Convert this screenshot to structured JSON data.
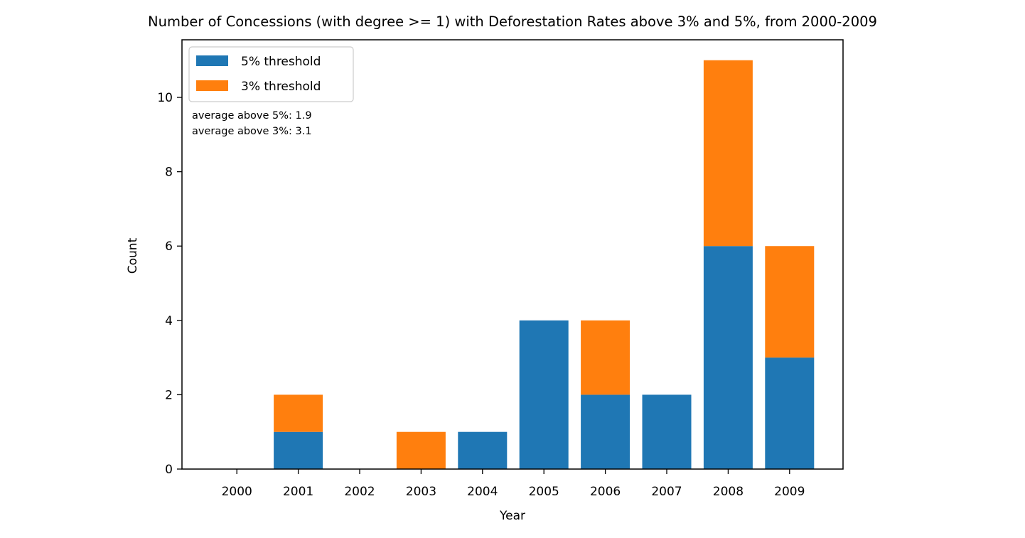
{
  "chart_data": {
    "type": "bar",
    "stacked": true,
    "title": "Number of Concessions (with degree >= 1) with Deforestation Rates above 3% and 5%, from 2000-2009",
    "xlabel": "Year",
    "ylabel": "Count",
    "ylim": [
      0,
      11.55
    ],
    "yticks": [
      0,
      2,
      4,
      6,
      8,
      10
    ],
    "categories": [
      "2000",
      "2001",
      "2002",
      "2003",
      "2004",
      "2005",
      "2006",
      "2007",
      "2008",
      "2009"
    ],
    "series": [
      {
        "name": "5% threshold",
        "color": "#1f77b4",
        "values": [
          0,
          1,
          0,
          0,
          1,
          4,
          2,
          2,
          6,
          3
        ]
      },
      {
        "name": "3% threshold",
        "color": "#ff7f0e",
        "values": [
          0,
          1,
          0,
          1,
          0,
          0,
          2,
          0,
          5,
          3
        ]
      }
    ],
    "legend": {
      "position": "upper-left"
    },
    "annotations": [
      "average above 5%: 1.9",
      "average above 3%: 3.1"
    ],
    "grid": false
  }
}
